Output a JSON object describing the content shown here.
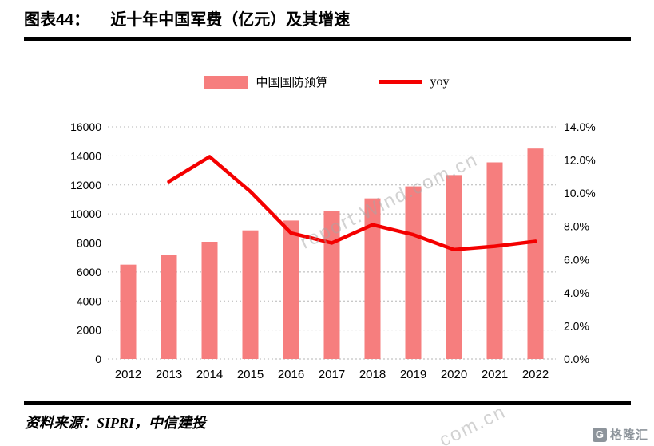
{
  "header": {
    "label": "图表44：",
    "title": "近十年中国军费（亿元）及其增速"
  },
  "legend": {
    "bar_label": "中国国防预算",
    "line_label": "yoy"
  },
  "chart_data": {
    "type": "bar",
    "title": "近十年中国军费（亿元）及其增速",
    "categories": [
      "2012",
      "2013",
      "2014",
      "2015",
      "2016",
      "2017",
      "2018",
      "2019",
      "2020",
      "2021",
      "2022"
    ],
    "series": [
      {
        "name": "中国国防预算",
        "type": "bar",
        "axis": "left",
        "color": "#f67e7e",
        "values": [
          6506,
          7202,
          8082,
          8869,
          9544,
          10211,
          11070,
          11899,
          12680,
          13553,
          14505
        ]
      },
      {
        "name": "yoy",
        "type": "line",
        "axis": "right",
        "color": "#f40000",
        "values": [
          null,
          10.7,
          12.2,
          10.1,
          7.6,
          7.0,
          8.1,
          7.5,
          6.6,
          6.8,
          7.1
        ]
      }
    ],
    "left_axis": {
      "min": 0,
      "max": 16000,
      "step": 2000,
      "labels": [
        "0",
        "2000",
        "4000",
        "6000",
        "8000",
        "10000",
        "12000",
        "14000",
        "16000"
      ]
    },
    "right_axis": {
      "min": 0,
      "max": 14,
      "step": 2,
      "labels": [
        "0.0%",
        "2.0%",
        "4.0%",
        "6.0%",
        "8.0%",
        "10.0%",
        "12.0%",
        "14.0%"
      ]
    },
    "grid": true,
    "legend_position": "top"
  },
  "watermark": {
    "center": "report.Wind.com.cn",
    "corner": "com.cn"
  },
  "footer": {
    "source": "资料来源：SIPRI，中信建投"
  },
  "logo": {
    "icon": "G",
    "text": "格隆汇"
  }
}
